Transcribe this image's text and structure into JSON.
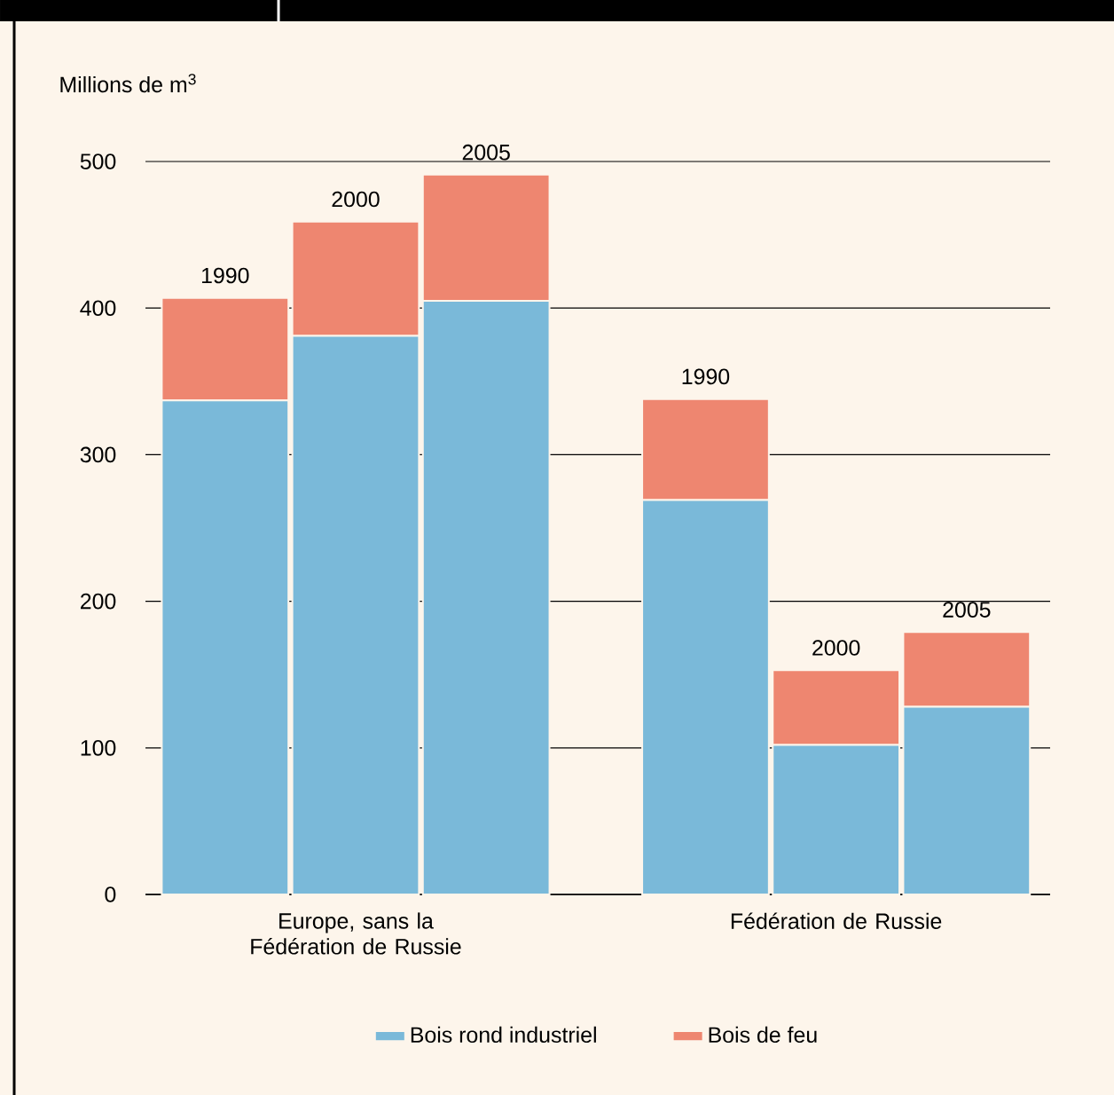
{
  "chart_data": {
    "type": "bar",
    "stacked": true,
    "ylabel": "Millions de m$^{3}$",
    "categories": [
      "1990",
      "2000",
      "2005",
      "1990",
      "2000",
      "2005"
    ],
    "series": [
      {
        "name": "Bois rond industriel",
        "color": "#7ab9d9",
        "values": [
          337,
          381,
          405,
          269,
          102,
          128
        ]
      },
      {
        "name": "Bois de feu",
        "color": "#ee8670",
        "values": [
          70,
          78,
          86,
          69,
          51,
          51
        ]
      }
    ],
    "annotations": [
      "Europe, sans la Fédération de Russie",
      "Fédération de Russie"
    ],
    "ylim": [
      0,
      500
    ],
    "yticks": [
      0,
      100,
      200,
      300,
      400,
      500
    ],
    "grid": "y",
    "legend": "bottom"
  }
}
